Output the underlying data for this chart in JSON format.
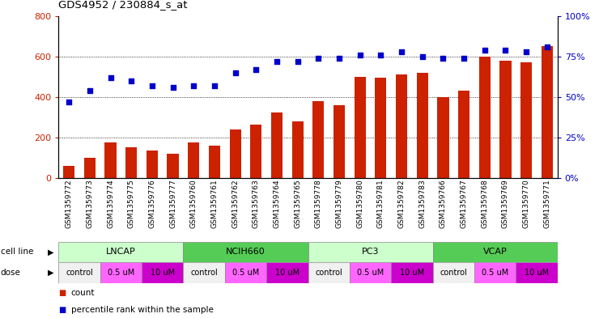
{
  "title": "GDS4952 / 230884_s_at",
  "samples": [
    "GSM1359772",
    "GSM1359773",
    "GSM1359774",
    "GSM1359775",
    "GSM1359776",
    "GSM1359777",
    "GSM1359760",
    "GSM1359761",
    "GSM1359762",
    "GSM1359763",
    "GSM1359764",
    "GSM1359765",
    "GSM1359778",
    "GSM1359779",
    "GSM1359780",
    "GSM1359781",
    "GSM1359782",
    "GSM1359783",
    "GSM1359766",
    "GSM1359767",
    "GSM1359768",
    "GSM1359769",
    "GSM1359770",
    "GSM1359771"
  ],
  "bar_values": [
    60,
    100,
    175,
    150,
    135,
    120,
    175,
    160,
    240,
    265,
    325,
    280,
    380,
    360,
    500,
    495,
    510,
    520,
    400,
    430,
    600,
    580,
    570,
    650
  ],
  "dot_values": [
    47,
    54,
    62,
    60,
    57,
    56,
    57,
    57,
    65,
    67,
    72,
    72,
    74,
    74,
    76,
    76,
    78,
    75,
    74,
    74,
    79,
    79,
    78,
    81
  ],
  "bar_color": "#cc2200",
  "dot_color": "#0000cc",
  "cell_lines": [
    {
      "name": "LNCAP",
      "start": 0,
      "end": 6,
      "color": "#ccffcc"
    },
    {
      "name": "NCIH660",
      "start": 6,
      "end": 12,
      "color": "#55cc55"
    },
    {
      "name": "PC3",
      "start": 12,
      "end": 18,
      "color": "#ccffcc"
    },
    {
      "name": "VCAP",
      "start": 18,
      "end": 24,
      "color": "#55cc55"
    }
  ],
  "doses": [
    {
      "name": "control",
      "start": 0,
      "end": 2,
      "color": "#f0f0f0"
    },
    {
      "name": "0.5 uM",
      "start": 2,
      "end": 4,
      "color": "#ff66ff"
    },
    {
      "name": "10 uM",
      "start": 4,
      "end": 6,
      "color": "#cc00cc"
    },
    {
      "name": "control",
      "start": 6,
      "end": 8,
      "color": "#f0f0f0"
    },
    {
      "name": "0.5 uM",
      "start": 8,
      "end": 10,
      "color": "#ff66ff"
    },
    {
      "name": "10 uM",
      "start": 10,
      "end": 12,
      "color": "#cc00cc"
    },
    {
      "name": "control",
      "start": 12,
      "end": 14,
      "color": "#f0f0f0"
    },
    {
      "name": "0.5 uM",
      "start": 14,
      "end": 16,
      "color": "#ff66ff"
    },
    {
      "name": "10 uM",
      "start": 16,
      "end": 18,
      "color": "#cc00cc"
    },
    {
      "name": "control",
      "start": 18,
      "end": 20,
      "color": "#f0f0f0"
    },
    {
      "name": "0.5 uM",
      "start": 20,
      "end": 22,
      "color": "#ff66ff"
    },
    {
      "name": "10 uM",
      "start": 22,
      "end": 24,
      "color": "#cc00cc"
    }
  ],
  "ylim_left": [
    0,
    800
  ],
  "ylim_right": [
    0,
    100
  ],
  "yticks_left": [
    0,
    200,
    400,
    600,
    800
  ],
  "yticks_right": [
    0,
    25,
    50,
    75,
    100
  ],
  "ytick_labels_right": [
    "0%",
    "25%",
    "50%",
    "75%",
    "100%"
  ],
  "hgrid_vals": [
    200,
    400,
    600
  ],
  "background_color": "#ffffff"
}
